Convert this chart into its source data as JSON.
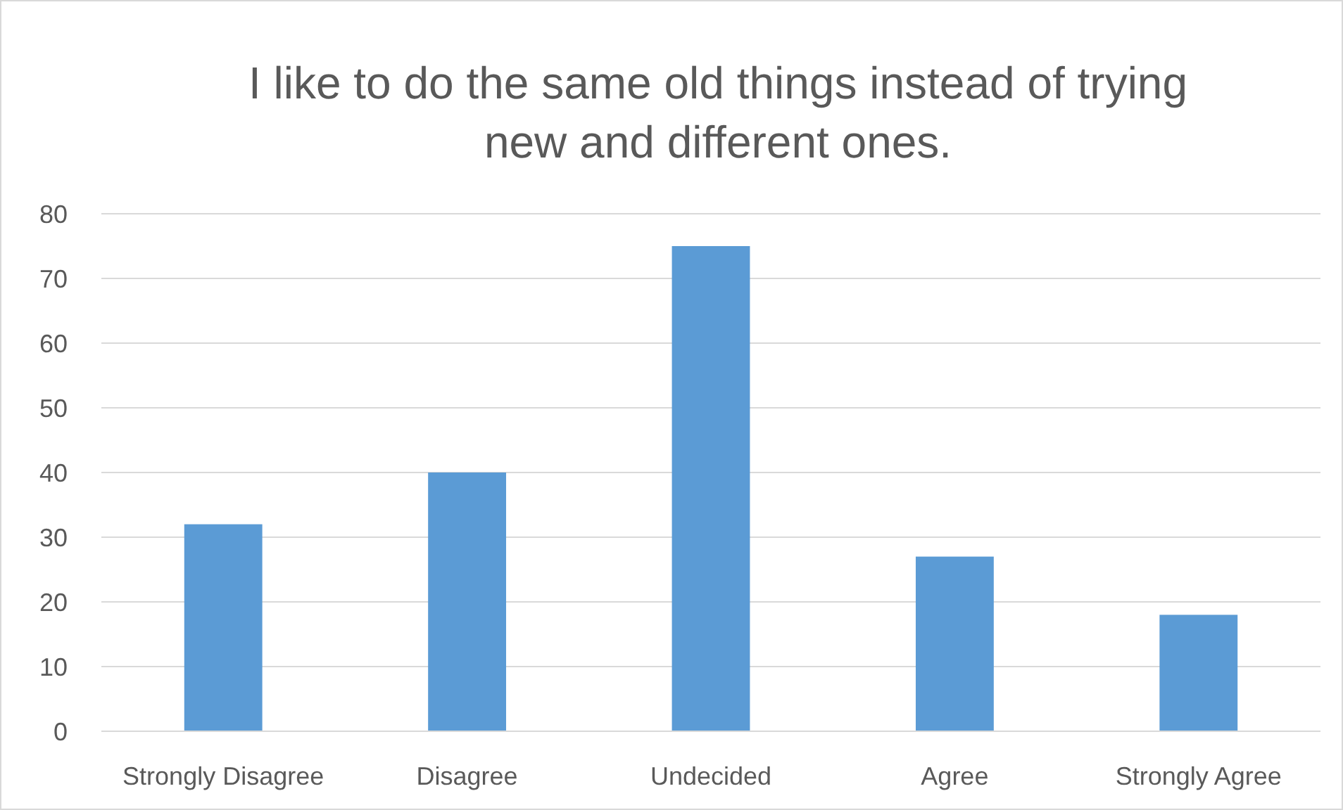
{
  "chart_data": {
    "type": "bar",
    "title": "I like to do the same old things instead of trying new and different ones.",
    "categories": [
      "Strongly Disagree",
      "Disagree",
      "Undecided",
      "Agree",
      "Strongly Agree"
    ],
    "values": [
      32,
      40,
      75,
      27,
      18
    ],
    "color": "#5b9bd5",
    "ylim": [
      0,
      80
    ],
    "yticks": [
      0,
      10,
      20,
      30,
      40,
      50,
      60,
      70,
      80
    ],
    "grid": "y"
  }
}
